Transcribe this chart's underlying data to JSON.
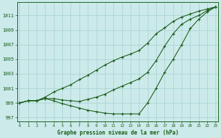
{
  "xlabel": "Graphe pression niveau de la mer (hPa)",
  "background_color": "#cceaea",
  "grid_color": "#aad4d4",
  "line_color": "#1a5c1a",
  "x": [
    0,
    1,
    2,
    3,
    4,
    5,
    6,
    7,
    8,
    9,
    10,
    11,
    12,
    13,
    14,
    15,
    16,
    17,
    18,
    19,
    20,
    21,
    22,
    23
  ],
  "y_top": [
    999.0,
    999.3,
    999.3,
    999.8,
    1000.5,
    1001.0,
    1001.5,
    1002.2,
    1002.8,
    1003.5,
    1004.2,
    1004.8,
    1005.3,
    1005.7,
    1006.2,
    1007.2,
    1008.5,
    1009.3,
    1010.2,
    1010.8,
    1011.2,
    1011.6,
    1011.9,
    1012.2
  ],
  "y_mid": [
    999.0,
    999.3,
    999.3,
    999.6,
    999.6,
    999.4,
    999.3,
    999.2,
    999.5,
    999.8,
    1000.2,
    1000.8,
    1001.3,
    1001.8,
    1002.3,
    1003.2,
    1004.8,
    1006.8,
    1008.5,
    1009.8,
    1010.5,
    1011.0,
    1011.7,
    1012.2
  ],
  "y_bot": [
    999.0,
    999.3,
    999.3,
    999.6,
    999.3,
    998.9,
    998.6,
    998.3,
    998.0,
    997.8,
    997.6,
    997.5,
    997.5,
    997.5,
    997.5,
    999.0,
    1001.0,
    1003.2,
    1005.0,
    1007.0,
    1009.2,
    1010.5,
    1011.5,
    1012.2
  ],
  "ylim": [
    996.5,
    1012.8
  ],
  "yticks": [
    997,
    999,
    1001,
    1003,
    1005,
    1007,
    1009,
    1011
  ],
  "xlim": [
    -0.3,
    23.3
  ],
  "xticks": [
    0,
    1,
    2,
    3,
    4,
    5,
    6,
    7,
    8,
    9,
    10,
    11,
    12,
    13,
    14,
    15,
    16,
    17,
    18,
    19,
    20,
    21,
    22,
    23
  ],
  "marker": "+",
  "markersize": 3.5,
  "linewidth": 0.8
}
